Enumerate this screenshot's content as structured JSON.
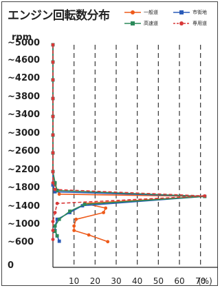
{
  "chart_data": {
    "type": "line",
    "title": "エンジン回転数分布",
    "ylabel": "rpm",
    "xunit": "(%)",
    "yticks": [
      "~5000",
      "~4600",
      "~4200",
      "~3800",
      "~3400",
      "~3000",
      "~2600",
      "~2200",
      "~1800",
      "~1400",
      "~1000",
      "~600",
      "0"
    ],
    "ytick_values": [
      5000,
      4600,
      4200,
      3800,
      3400,
      3000,
      2600,
      2200,
      1800,
      1400,
      1000,
      600,
      0
    ],
    "xticks": [
      "10",
      "20",
      "30",
      "40",
      "50",
      "60",
      "70"
    ],
    "xtick_values": [
      10,
      20,
      30,
      40,
      50,
      60,
      70
    ],
    "xlim": [
      0,
      75
    ],
    "ylim": [
      0,
      5200
    ],
    "grid": "vertical-dashed",
    "legend_position": "top-right",
    "series": [
      {
        "name": "一般道",
        "color": "#ee5a1a",
        "marker": "circle",
        "dash": "solid",
        "points": [
          [
            0,
            5000
          ],
          [
            0,
            4600
          ],
          [
            0,
            4200
          ],
          [
            0,
            3800
          ],
          [
            0,
            3400
          ],
          [
            0,
            3000
          ],
          [
            0,
            2600
          ],
          [
            0,
            2200
          ],
          [
            1,
            1900
          ],
          [
            3,
            1700
          ],
          [
            72,
            1650
          ],
          [
            15,
            1500
          ],
          [
            25,
            1400
          ],
          [
            24,
            1300
          ],
          [
            11,
            1150
          ],
          [
            10,
            1000
          ],
          [
            10,
            900
          ],
          [
            17,
            800
          ],
          [
            26,
            650
          ]
        ]
      },
      {
        "name": "市街地",
        "color": "#2a5bb8",
        "marker": "square",
        "dash": "solid",
        "points": [
          [
            0,
            5000
          ],
          [
            0,
            4600
          ],
          [
            0,
            4200
          ],
          [
            0,
            3800
          ],
          [
            0,
            3400
          ],
          [
            0,
            3000
          ],
          [
            0,
            2600
          ],
          [
            0,
            2200
          ],
          [
            0,
            1900
          ],
          [
            1,
            1750
          ],
          [
            72,
            1650
          ],
          [
            14,
            1450
          ],
          [
            8,
            1300
          ],
          [
            2,
            1150
          ],
          [
            1,
            1000
          ],
          [
            1,
            900
          ],
          [
            2,
            780
          ],
          [
            3,
            660
          ]
        ]
      },
      {
        "name": "高速道",
        "color": "#2b8a5a",
        "marker": "square",
        "dash": "solid",
        "points": [
          [
            0,
            5000
          ],
          [
            0,
            4600
          ],
          [
            0,
            4200
          ],
          [
            0,
            3800
          ],
          [
            0,
            3400
          ],
          [
            0,
            3000
          ],
          [
            0,
            2600
          ],
          [
            0,
            2200
          ],
          [
            1,
            1950
          ],
          [
            2,
            1780
          ],
          [
            72,
            1650
          ],
          [
            15,
            1480
          ],
          [
            8,
            1330
          ],
          [
            3,
            1150
          ],
          [
            1,
            1000
          ],
          [
            1,
            880
          ],
          [
            2,
            780
          ]
        ]
      },
      {
        "name": "専用道",
        "color": "#d83838",
        "marker": "circle",
        "dash": "dashed",
        "points": [
          [
            0,
            5000
          ],
          [
            0,
            4600
          ],
          [
            0,
            4200
          ],
          [
            0,
            3800
          ],
          [
            0,
            3400
          ],
          [
            0,
            3000
          ],
          [
            0,
            2600
          ],
          [
            0,
            2200
          ],
          [
            0,
            1950
          ],
          [
            1,
            1800
          ],
          [
            72,
            1660
          ],
          [
            2,
            1500
          ],
          [
            1,
            1300
          ],
          [
            0,
            1100
          ],
          [
            0,
            900
          ],
          [
            0,
            700
          ]
        ]
      }
    ]
  }
}
